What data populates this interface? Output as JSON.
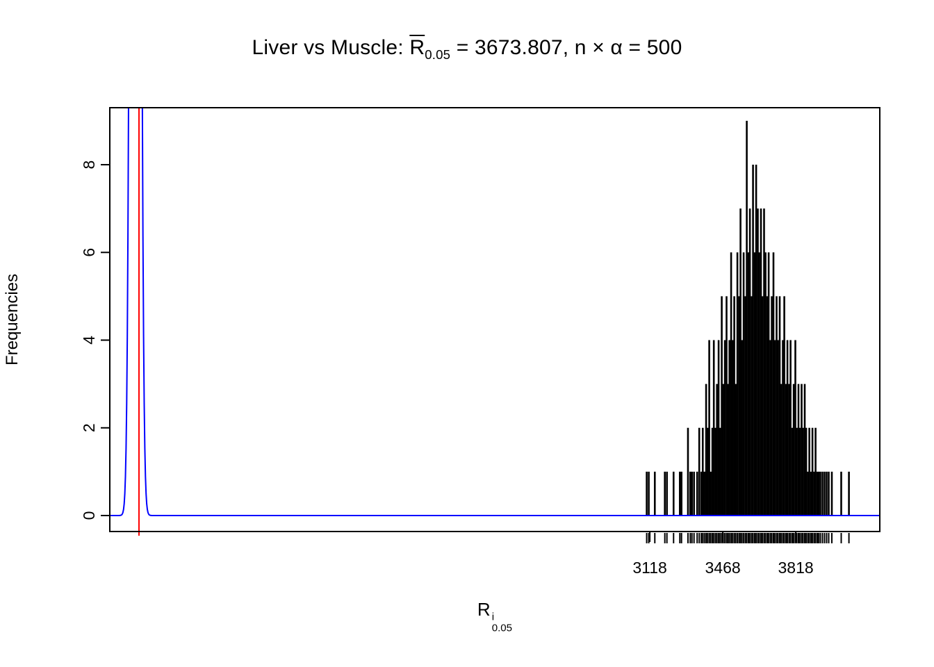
{
  "title": {
    "prefix": "Liver vs Muscle: ",
    "stat_base": "R",
    "stat_sub": "0.05",
    "rest": " = 3673.807, n × α = 500"
  },
  "chart_data": {
    "type": "bar",
    "variant": "needle-histogram-with-density-and-rug",
    "title": "Liver vs Muscle: R̄0.05 = 3673.807, n × α = 500",
    "xlabel": "R^i_0.05",
    "xlabel_parts": {
      "base": "R",
      "sup": "i",
      "sub": "0.05"
    },
    "ylabel": "Frequencies",
    "xlim": [
      528,
      4221
    ],
    "ylim": [
      0,
      9.3
    ],
    "x_ticks": [
      3118,
      3468,
      3818
    ],
    "y_ticks": [
      0,
      2,
      4,
      6,
      8
    ],
    "grid": false,
    "legend": false,
    "spike_color": "#000000",
    "observed_line": {
      "x": 668,
      "color": "#FF0000"
    },
    "density_curve": {
      "center": 651,
      "sigma": 16,
      "amplitude": 80,
      "color": "#0000FF"
    },
    "rug": true,
    "spikes": [
      [
        3103,
        1
      ],
      [
        3113,
        1
      ],
      [
        3142,
        1
      ],
      [
        3190,
        1
      ],
      [
        3200,
        1
      ],
      [
        3232,
        1
      ],
      [
        3262,
        1
      ],
      [
        3270,
        1
      ],
      [
        3301,
        2
      ],
      [
        3312,
        1
      ],
      [
        3320,
        1
      ],
      [
        3330,
        1
      ],
      [
        3345,
        1
      ],
      [
        3355,
        2
      ],
      [
        3365,
        1
      ],
      [
        3372,
        2
      ],
      [
        3380,
        1
      ],
      [
        3388,
        3
      ],
      [
        3395,
        2
      ],
      [
        3403,
        4
      ],
      [
        3410,
        1
      ],
      [
        3418,
        2
      ],
      [
        3425,
        4
      ],
      [
        3433,
        2
      ],
      [
        3440,
        3
      ],
      [
        3448,
        4
      ],
      [
        3455,
        2
      ],
      [
        3463,
        5
      ],
      [
        3470,
        3
      ],
      [
        3478,
        4
      ],
      [
        3486,
        5
      ],
      [
        3493,
        3
      ],
      [
        3500,
        4
      ],
      [
        3508,
        6
      ],
      [
        3515,
        4
      ],
      [
        3523,
        5
      ],
      [
        3530,
        3
      ],
      [
        3538,
        6
      ],
      [
        3546,
        5
      ],
      [
        3553,
        7
      ],
      [
        3560,
        4
      ],
      [
        3568,
        6
      ],
      [
        3576,
        5
      ],
      [
        3583,
        9
      ],
      [
        3591,
        6
      ],
      [
        3598,
        7
      ],
      [
        3606,
        5
      ],
      [
        3613,
        8
      ],
      [
        3621,
        6
      ],
      [
        3628,
        8
      ],
      [
        3636,
        7
      ],
      [
        3643,
        6
      ],
      [
        3651,
        7
      ],
      [
        3658,
        5
      ],
      [
        3666,
        7
      ],
      [
        3673,
        6
      ],
      [
        3681,
        5
      ],
      [
        3688,
        6
      ],
      [
        3696,
        4
      ],
      [
        3703,
        5
      ],
      [
        3711,
        6
      ],
      [
        3718,
        4
      ],
      [
        3726,
        5
      ],
      [
        3733,
        4
      ],
      [
        3741,
        5
      ],
      [
        3748,
        3
      ],
      [
        3756,
        4
      ],
      [
        3763,
        5
      ],
      [
        3771,
        3
      ],
      [
        3778,
        4
      ],
      [
        3786,
        3
      ],
      [
        3793,
        4
      ],
      [
        3801,
        2
      ],
      [
        3808,
        3
      ],
      [
        3816,
        4
      ],
      [
        3823,
        2
      ],
      [
        3831,
        3
      ],
      [
        3838,
        2
      ],
      [
        3846,
        3
      ],
      [
        3853,
        2
      ],
      [
        3861,
        3
      ],
      [
        3868,
        2
      ],
      [
        3876,
        1
      ],
      [
        3883,
        2
      ],
      [
        3891,
        1
      ],
      [
        3898,
        2
      ],
      [
        3906,
        1
      ],
      [
        3913,
        2
      ],
      [
        3921,
        1
      ],
      [
        3928,
        1
      ],
      [
        3936,
        1
      ],
      [
        3946,
        1
      ],
      [
        3956,
        1
      ],
      [
        3966,
        1
      ],
      [
        3976,
        1
      ],
      [
        3991,
        1
      ],
      [
        4036,
        1
      ],
      [
        4073,
        1
      ]
    ]
  }
}
